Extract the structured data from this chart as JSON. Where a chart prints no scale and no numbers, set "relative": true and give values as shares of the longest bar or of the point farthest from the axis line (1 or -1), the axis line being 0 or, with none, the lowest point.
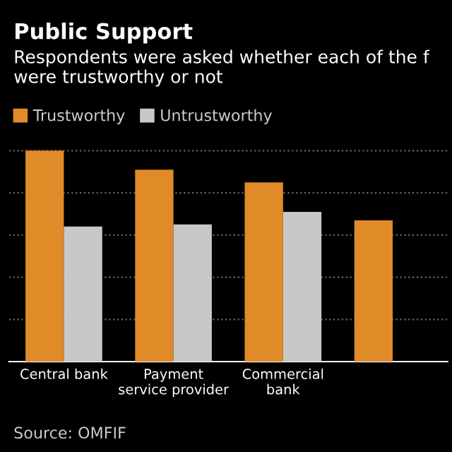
{
  "chart_data": {
    "type": "bar",
    "title": "Public Support",
    "subtitle": "Respondents were asked whether each of the f were trustworthy or not",
    "categories": [
      "Central bank",
      "Payment service provider",
      "Commercial bank",
      null
    ],
    "series": [
      {
        "name": "Trustworthy",
        "color": "#e08a28",
        "values": [
          1,
          0.91,
          0.85,
          0.67
        ]
      },
      {
        "name": "Untrustworthy",
        "color": "#c8c8c8",
        "values": [
          0.64,
          0.65,
          0.71,
          null
        ]
      }
    ],
    "relative": true,
    "grid": "y",
    "legend": "top left",
    "annotations": [
      "Source: OMFIF"
    ]
  }
}
